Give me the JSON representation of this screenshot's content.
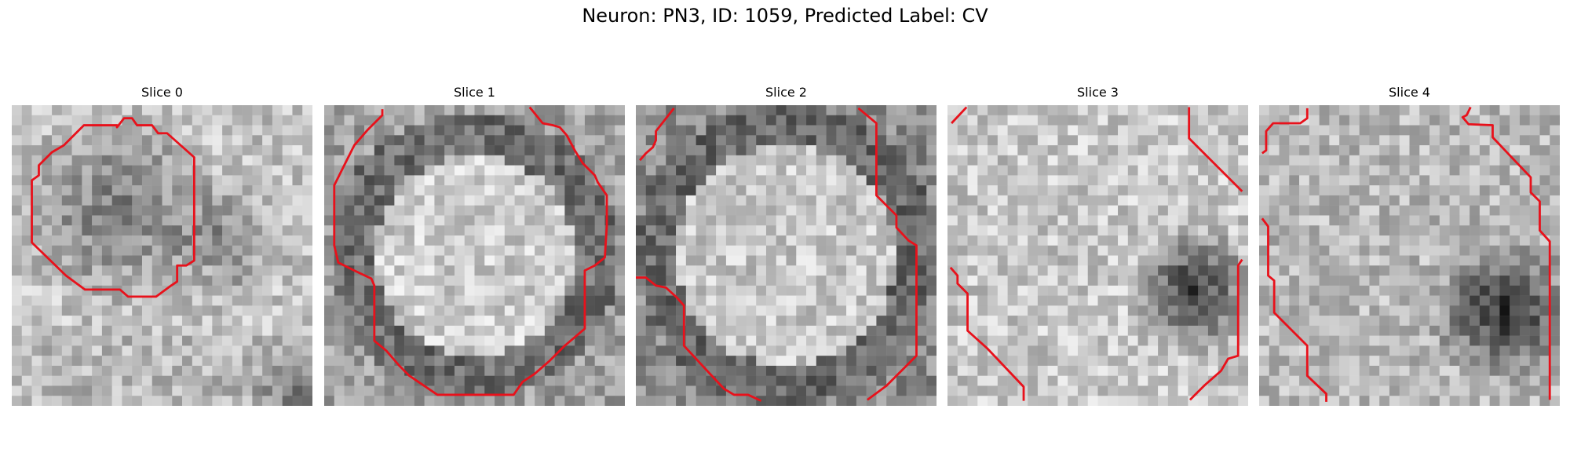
{
  "figure": {
    "title": "Neuron: PN3, ID: 1059, Predicted Label: CV"
  },
  "panels": [
    {
      "title": "Slice 0"
    },
    {
      "title": "Slice 1"
    },
    {
      "title": "Slice 2"
    },
    {
      "title": "Slice 3"
    },
    {
      "title": "Slice 4"
    }
  ],
  "style": {
    "contour_color": "#e8111b",
    "colormap": "gray"
  }
}
